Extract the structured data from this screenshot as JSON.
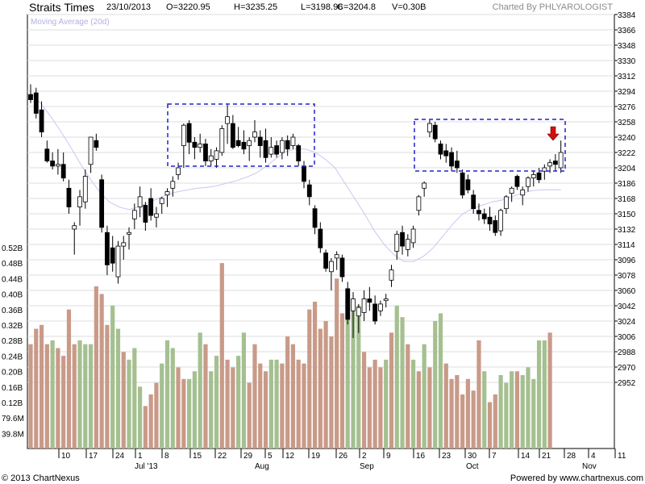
{
  "header": {
    "title": "Straits Times",
    "date": "23/10/2013",
    "open": "O=3220.95",
    "high": "H=3235.25",
    "low": "L=3198.96",
    "close": "C=3204.8",
    "volume": "V=0.30B",
    "credit": "Charted By PHLYAROLOGIST"
  },
  "footer": {
    "copyright": "© 2013 ChartNexus",
    "powered": "Powered by www.chartnexus.com"
  },
  "colors": {
    "up_candle_fill": "#ffffff",
    "down_candle_fill": "#000000",
    "volume_up": "#a5c090",
    "volume_down": "#c99a88",
    "moving_average": "#c8c8f0",
    "annotation_box": "#2222cc",
    "arrow": "#d01010",
    "grid": "#dcdcdc"
  },
  "chart_data": {
    "type": "candlestick",
    "legend": "Moving Average (20d)",
    "price_axis": {
      "ticks": [
        "3384",
        "3366",
        "3348",
        "3330",
        "3312",
        "3294",
        "3276",
        "3258",
        "3240",
        "3222",
        "3204",
        "3186",
        "3168",
        "3150",
        "3132",
        "3114",
        "3096",
        "3078",
        "3060",
        "3042",
        "3024",
        "3006",
        "2988",
        "2970",
        "2952"
      ],
      "range": [
        2934,
        3390
      ]
    },
    "volume_axis": {
      "ticks": [
        "0.52B",
        "0.48B",
        "0.44B",
        "0.40B",
        "0.36B",
        "0.32B",
        "0.28B",
        "0.24B",
        "0.20B",
        "0.16B",
        "0.12B",
        "79.6M",
        "39.8M"
      ],
      "range": [
        0,
        0.54
      ]
    },
    "x_day_ticks": [
      "10",
      "17",
      "24",
      "1",
      "8",
      "15",
      "22",
      "29",
      "5",
      "12",
      "19",
      "26",
      "2",
      "9",
      "16",
      "23",
      "30",
      "7",
      "14",
      "21",
      "28",
      "4",
      "11"
    ],
    "x_month_labels": [
      "Jul '13",
      "Aug",
      "Sep",
      "Oct",
      "Nov"
    ],
    "candles": [
      {
        "o": 3290,
        "h": 3302,
        "l": 3280,
        "c": 3284
      },
      {
        "o": 3292,
        "h": 3298,
        "l": 3262,
        "c": 3268
      },
      {
        "o": 3272,
        "h": 3282,
        "l": 3240,
        "c": 3246
      },
      {
        "o": 3226,
        "h": 3236,
        "l": 3210,
        "c": 3212
      },
      {
        "o": 3212,
        "h": 3222,
        "l": 3202,
        "c": 3206
      },
      {
        "o": 3206,
        "h": 3226,
        "l": 3196,
        "c": 3208
      },
      {
        "o": 3208,
        "h": 3222,
        "l": 3188,
        "c": 3192
      },
      {
        "o": 3180,
        "h": 3190,
        "l": 3150,
        "c": 3158
      },
      {
        "o": 3132,
        "h": 3140,
        "l": 3102,
        "c": 3136
      },
      {
        "o": 3158,
        "h": 3178,
        "l": 3136,
        "c": 3170
      },
      {
        "o": 3164,
        "h": 3202,
        "l": 3156,
        "c": 3194
      },
      {
        "o": 3208,
        "h": 3238,
        "l": 3198,
        "c": 3240
      },
      {
        "o": 3236,
        "h": 3244,
        "l": 3224,
        "c": 3228
      },
      {
        "o": 3190,
        "h": 3196,
        "l": 3128,
        "c": 3134
      },
      {
        "o": 3128,
        "h": 3136,
        "l": 3078,
        "c": 3090
      },
      {
        "o": 3110,
        "h": 3124,
        "l": 3082,
        "c": 3092
      },
      {
        "o": 3076,
        "h": 3118,
        "l": 3068,
        "c": 3112
      },
      {
        "o": 3112,
        "h": 3124,
        "l": 3096,
        "c": 3116
      },
      {
        "o": 3126,
        "h": 3134,
        "l": 3108,
        "c": 3128
      },
      {
        "o": 3144,
        "h": 3162,
        "l": 3132,
        "c": 3154
      },
      {
        "o": 3158,
        "h": 3182,
        "l": 3146,
        "c": 3170
      },
      {
        "o": 3160,
        "h": 3164,
        "l": 3130,
        "c": 3140
      },
      {
        "o": 3168,
        "h": 3180,
        "l": 3142,
        "c": 3148
      },
      {
        "o": 3146,
        "h": 3158,
        "l": 3134,
        "c": 3150
      },
      {
        "o": 3162,
        "h": 3170,
        "l": 3150,
        "c": 3168
      },
      {
        "o": 3172,
        "h": 3180,
        "l": 3158,
        "c": 3176
      },
      {
        "o": 3180,
        "h": 3194,
        "l": 3170,
        "c": 3188
      },
      {
        "o": 3196,
        "h": 3210,
        "l": 3190,
        "c": 3204
      },
      {
        "o": 3230,
        "h": 3256,
        "l": 3204,
        "c": 3254
      },
      {
        "o": 3256,
        "h": 3260,
        "l": 3220,
        "c": 3234
      },
      {
        "o": 3234,
        "h": 3240,
        "l": 3214,
        "c": 3228
      },
      {
        "o": 3228,
        "h": 3244,
        "l": 3222,
        "c": 3232
      },
      {
        "o": 3232,
        "h": 3238,
        "l": 3206,
        "c": 3212
      },
      {
        "o": 3212,
        "h": 3226,
        "l": 3206,
        "c": 3218
      },
      {
        "o": 3214,
        "h": 3228,
        "l": 3204,
        "c": 3224
      },
      {
        "o": 3222,
        "h": 3254,
        "l": 3218,
        "c": 3250
      },
      {
        "o": 3256,
        "h": 3278,
        "l": 3232,
        "c": 3264
      },
      {
        "o": 3256,
        "h": 3266,
        "l": 3226,
        "c": 3228
      },
      {
        "o": 3236,
        "h": 3252,
        "l": 3228,
        "c": 3230
      },
      {
        "o": 3234,
        "h": 3248,
        "l": 3220,
        "c": 3226
      },
      {
        "o": 3230,
        "h": 3240,
        "l": 3212,
        "c": 3236
      },
      {
        "o": 3240,
        "h": 3260,
        "l": 3234,
        "c": 3246
      },
      {
        "o": 3240,
        "h": 3248,
        "l": 3216,
        "c": 3230
      },
      {
        "o": 3236,
        "h": 3250,
        "l": 3210,
        "c": 3216
      },
      {
        "o": 3220,
        "h": 3240,
        "l": 3216,
        "c": 3228
      },
      {
        "o": 3230,
        "h": 3236,
        "l": 3216,
        "c": 3220
      },
      {
        "o": 3222,
        "h": 3240,
        "l": 3214,
        "c": 3236
      },
      {
        "o": 3236,
        "h": 3242,
        "l": 3218,
        "c": 3226
      },
      {
        "o": 3230,
        "h": 3244,
        "l": 3226,
        "c": 3240
      },
      {
        "o": 3230,
        "h": 3232,
        "l": 3206,
        "c": 3212
      },
      {
        "o": 3206,
        "h": 3212,
        "l": 3180,
        "c": 3188
      },
      {
        "o": 3184,
        "h": 3190,
        "l": 3160,
        "c": 3170
      },
      {
        "o": 3156,
        "h": 3160,
        "l": 3126,
        "c": 3134
      },
      {
        "o": 3132,
        "h": 3140,
        "l": 3104,
        "c": 3110
      },
      {
        "o": 3104,
        "h": 3108,
        "l": 3082,
        "c": 3086
      },
      {
        "o": 3082,
        "h": 3098,
        "l": 3060,
        "c": 3094
      },
      {
        "o": 3098,
        "h": 3106,
        "l": 3084,
        "c": 3102
      },
      {
        "o": 3098,
        "h": 3102,
        "l": 3070,
        "c": 3076
      },
      {
        "o": 3062,
        "h": 3070,
        "l": 3020,
        "c": 3026
      },
      {
        "o": 3036,
        "h": 3058,
        "l": 3004,
        "c": 3050
      },
      {
        "o": 3030,
        "h": 3044,
        "l": 3010,
        "c": 3040
      },
      {
        "o": 3034,
        "h": 3060,
        "l": 3024,
        "c": 3050
      },
      {
        "o": 3050,
        "h": 3064,
        "l": 3036,
        "c": 3046
      },
      {
        "o": 3044,
        "h": 3054,
        "l": 3020,
        "c": 3024
      },
      {
        "o": 3036,
        "h": 3048,
        "l": 3030,
        "c": 3044
      },
      {
        "o": 3048,
        "h": 3056,
        "l": 3040,
        "c": 3050
      },
      {
        "o": 3072,
        "h": 3090,
        "l": 3064,
        "c": 3084
      },
      {
        "o": 3106,
        "h": 3130,
        "l": 3096,
        "c": 3126
      },
      {
        "o": 3128,
        "h": 3136,
        "l": 3102,
        "c": 3112
      },
      {
        "o": 3108,
        "h": 3126,
        "l": 3100,
        "c": 3120
      },
      {
        "o": 3116,
        "h": 3136,
        "l": 3110,
        "c": 3132
      },
      {
        "o": 3154,
        "h": 3172,
        "l": 3148,
        "c": 3170
      },
      {
        "o": 3180,
        "h": 3188,
        "l": 3170,
        "c": 3186
      },
      {
        "o": 3246,
        "h": 3260,
        "l": 3240,
        "c": 3256
      },
      {
        "o": 3254,
        "h": 3258,
        "l": 3234,
        "c": 3238
      },
      {
        "o": 3232,
        "h": 3236,
        "l": 3214,
        "c": 3220
      },
      {
        "o": 3224,
        "h": 3232,
        "l": 3210,
        "c": 3218
      },
      {
        "o": 3222,
        "h": 3228,
        "l": 3200,
        "c": 3206
      },
      {
        "o": 3212,
        "h": 3224,
        "l": 3198,
        "c": 3204
      },
      {
        "o": 3198,
        "h": 3202,
        "l": 3168,
        "c": 3172
      },
      {
        "o": 3190,
        "h": 3196,
        "l": 3174,
        "c": 3178
      },
      {
        "o": 3172,
        "h": 3178,
        "l": 3150,
        "c": 3156
      },
      {
        "o": 3154,
        "h": 3162,
        "l": 3142,
        "c": 3150
      },
      {
        "o": 3150,
        "h": 3156,
        "l": 3138,
        "c": 3144
      },
      {
        "o": 3146,
        "h": 3158,
        "l": 3130,
        "c": 3138
      },
      {
        "o": 3142,
        "h": 3148,
        "l": 3124,
        "c": 3128
      },
      {
        "o": 3130,
        "h": 3156,
        "l": 3124,
        "c": 3154
      },
      {
        "o": 3156,
        "h": 3172,
        "l": 3150,
        "c": 3170
      },
      {
        "o": 3174,
        "h": 3182,
        "l": 3164,
        "c": 3180
      },
      {
        "o": 3194,
        "h": 3196,
        "l": 3178,
        "c": 3182
      },
      {
        "o": 3172,
        "h": 3182,
        "l": 3160,
        "c": 3178
      },
      {
        "o": 3182,
        "h": 3194,
        "l": 3176,
        "c": 3192
      },
      {
        "o": 3192,
        "h": 3200,
        "l": 3182,
        "c": 3196
      },
      {
        "o": 3198,
        "h": 3204,
        "l": 3186,
        "c": 3190
      },
      {
        "o": 3200,
        "h": 3208,
        "l": 3190,
        "c": 3204
      },
      {
        "o": 3206,
        "h": 3214,
        "l": 3198,
        "c": 3210
      },
      {
        "o": 3212,
        "h": 3220,
        "l": 3200,
        "c": 3208
      },
      {
        "o": 3204,
        "h": 3236,
        "l": 3198,
        "c": 3222
      }
    ],
    "moving_average_20d": [
      3292,
      3280,
      3265,
      3248,
      3230,
      3210,
      3192,
      3176,
      3164,
      3158,
      3155,
      3158,
      3163,
      3168,
      3173,
      3176,
      3178,
      3180,
      3181,
      3183,
      3186,
      3189,
      3193,
      3198,
      3206,
      3215,
      3223,
      3226,
      3226,
      3222,
      3214,
      3204,
      3186,
      3168,
      3150,
      3130,
      3114,
      3102,
      3094,
      3094,
      3100,
      3110,
      3124,
      3138,
      3150,
      3156,
      3160,
      3164,
      3166,
      3170,
      3174,
      3177,
      3178,
      3178,
      3178
    ],
    "ma_start_index": 0,
    "ma_step": 1.8,
    "volumes": [
      {
        "v": 0.27,
        "up": false
      },
      {
        "v": 0.31,
        "up": false
      },
      {
        "v": 0.32,
        "up": false
      },
      {
        "v": 0.27,
        "up": false
      },
      {
        "v": 0.28,
        "up": true
      },
      {
        "v": 0.26,
        "up": false
      },
      {
        "v": 0.24,
        "up": false
      },
      {
        "v": 0.36,
        "up": false
      },
      {
        "v": 0.27,
        "up": false
      },
      {
        "v": 0.28,
        "up": true
      },
      {
        "v": 0.27,
        "up": true
      },
      {
        "v": 0.27,
        "up": true
      },
      {
        "v": 0.42,
        "up": false
      },
      {
        "v": 0.4,
        "up": false
      },
      {
        "v": 0.32,
        "up": false
      },
      {
        "v": 0.37,
        "up": true
      },
      {
        "v": 0.31,
        "up": true
      },
      {
        "v": 0.25,
        "up": false
      },
      {
        "v": 0.23,
        "up": true
      },
      {
        "v": 0.26,
        "up": true
      },
      {
        "v": 0.16,
        "up": true
      },
      {
        "v": 0.11,
        "up": false
      },
      {
        "v": 0.14,
        "up": false
      },
      {
        "v": 0.17,
        "up": false
      },
      {
        "v": 0.22,
        "up": true
      },
      {
        "v": 0.28,
        "up": true
      },
      {
        "v": 0.26,
        "up": true
      },
      {
        "v": 0.21,
        "up": false
      },
      {
        "v": 0.18,
        "up": false
      },
      {
        "v": 0.18,
        "up": true
      },
      {
        "v": 0.2,
        "up": true
      },
      {
        "v": 0.3,
        "up": true
      },
      {
        "v": 0.27,
        "up": false
      },
      {
        "v": 0.2,
        "up": true
      },
      {
        "v": 0.24,
        "up": true
      },
      {
        "v": 0.48,
        "up": false
      },
      {
        "v": 0.23,
        "up": false
      },
      {
        "v": 0.21,
        "up": false
      },
      {
        "v": 0.24,
        "up": true
      },
      {
        "v": 0.3,
        "up": true
      },
      {
        "v": 0.17,
        "up": false
      },
      {
        "v": 0.27,
        "up": false
      },
      {
        "v": 0.22,
        "up": false
      },
      {
        "v": 0.2,
        "up": false
      },
      {
        "v": 0.23,
        "up": true
      },
      {
        "v": 0.23,
        "up": true
      },
      {
        "v": 0.22,
        "up": false
      },
      {
        "v": 0.29,
        "up": false
      },
      {
        "v": 0.27,
        "up": false
      },
      {
        "v": 0.23,
        "up": false
      },
      {
        "v": 0.22,
        "up": false
      },
      {
        "v": 0.36,
        "up": false
      },
      {
        "v": 0.38,
        "up": false
      },
      {
        "v": 0.31,
        "up": false
      },
      {
        "v": 0.33,
        "up": false
      },
      {
        "v": 0.29,
        "up": false
      },
      {
        "v": 0.44,
        "up": false
      },
      {
        "v": 0.35,
        "up": false
      },
      {
        "v": 0.4,
        "up": true
      },
      {
        "v": 0.37,
        "up": true
      },
      {
        "v": 0.37,
        "up": true
      },
      {
        "v": 0.25,
        "up": false
      },
      {
        "v": 0.21,
        "up": false
      },
      {
        "v": 0.23,
        "up": false
      },
      {
        "v": 0.21,
        "up": false
      },
      {
        "v": 0.23,
        "up": true
      },
      {
        "v": 0.3,
        "up": false
      },
      {
        "v": 0.37,
        "up": true
      },
      {
        "v": 0.34,
        "up": true
      },
      {
        "v": 0.27,
        "up": false
      },
      {
        "v": 0.23,
        "up": true
      },
      {
        "v": 0.2,
        "up": false
      },
      {
        "v": 0.27,
        "up": true
      },
      {
        "v": 0.21,
        "up": false
      },
      {
        "v": 0.33,
        "up": true
      },
      {
        "v": 0.35,
        "up": true
      },
      {
        "v": 0.22,
        "up": false
      },
      {
        "v": 0.18,
        "up": false
      },
      {
        "v": 0.19,
        "up": false
      },
      {
        "v": 0.14,
        "up": false
      },
      {
        "v": 0.18,
        "up": false
      },
      {
        "v": 0.15,
        "up": false
      },
      {
        "v": 0.28,
        "up": false
      },
      {
        "v": 0.2,
        "up": true
      },
      {
        "v": 0.12,
        "up": false
      },
      {
        "v": 0.14,
        "up": false
      },
      {
        "v": 0.19,
        "up": true
      },
      {
        "v": 0.17,
        "up": true
      },
      {
        "v": 0.2,
        "up": true
      },
      {
        "v": 0.2,
        "up": false
      },
      {
        "v": 0.19,
        "up": true
      },
      {
        "v": 0.21,
        "up": true
      },
      {
        "v": 0.18,
        "up": true
      },
      {
        "v": 0.28,
        "up": true
      },
      {
        "v": 0.28,
        "up": true
      },
      {
        "v": 0.3,
        "up": false
      }
    ]
  }
}
